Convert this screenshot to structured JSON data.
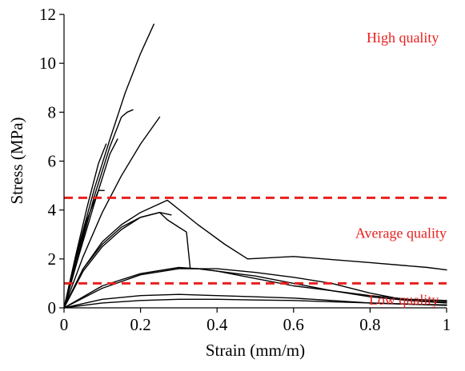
{
  "chart_data": {
    "type": "line",
    "xlabel": "Strain (mm/m)",
    "ylabel": "Stress (MPa)",
    "xlim": [
      0,
      1
    ],
    "ylim": [
      0,
      12
    ],
    "xticks": [
      0,
      0.2,
      0.4,
      0.6,
      0.8,
      1
    ],
    "yticks": [
      0,
      2,
      4,
      6,
      8,
      10,
      12
    ],
    "xtick_labels": [
      "0",
      "0.2",
      "0.4",
      "0.6",
      "0.8",
      "1"
    ],
    "ytick_labels": [
      "0",
      "2",
      "4",
      "6",
      "8",
      "10",
      "12"
    ],
    "grid": false,
    "legend": "none",
    "series": [
      {
        "x": [
          0,
          0.04,
          0.08,
          0.12,
          0.16,
          0.2,
          0.235
        ],
        "y": [
          0,
          2.6,
          4.9,
          6.9,
          8.8,
          10.4,
          11.6
        ]
      },
      {
        "x": [
          0,
          0.04,
          0.08,
          0.12,
          0.15,
          0.165,
          0.18
        ],
        "y": [
          0,
          2.3,
          4.6,
          6.6,
          7.8,
          8.0,
          8.1
        ]
      },
      {
        "x": [
          0,
          0.04,
          0.08,
          0.12,
          0.14
        ],
        "y": [
          0,
          2.2,
          4.3,
          6.3,
          6.9
        ]
      },
      {
        "x": [
          0,
          0.05,
          0.1,
          0.15,
          0.2,
          0.25
        ],
        "y": [
          0,
          2.1,
          3.9,
          5.4,
          6.7,
          7.8
        ]
      },
      {
        "x": [
          0,
          0.03,
          0.06,
          0.09,
          0.11
        ],
        "y": [
          0,
          2.1,
          4.1,
          5.9,
          6.7
        ]
      },
      {
        "x": [
          0,
          0.03,
          0.06,
          0.09,
          0.105
        ],
        "y": [
          0,
          1.9,
          3.6,
          4.8,
          4.8
        ]
      },
      {
        "x": [
          0,
          0.05,
          0.1,
          0.15,
          0.2,
          0.27,
          0.35,
          0.42,
          0.48,
          0.6,
          0.8,
          0.95,
          1
        ],
        "y": [
          0,
          1.6,
          2.7,
          3.4,
          3.9,
          4.4,
          3.4,
          2.6,
          2.0,
          2.1,
          1.85,
          1.65,
          1.55
        ]
      },
      {
        "x": [
          0,
          0.05,
          0.1,
          0.15,
          0.2,
          0.25,
          0.27,
          0.3,
          0.32,
          0.33,
          0.35,
          0.4,
          0.5,
          0.6,
          0.7,
          0.8,
          0.9,
          1
        ],
        "y": [
          0,
          1.6,
          2.6,
          3.3,
          3.7,
          3.9,
          3.6,
          3.3,
          3.1,
          1.6,
          1.6,
          1.5,
          1.2,
          0.9,
          0.7,
          0.5,
          0.35,
          0.3
        ]
      },
      {
        "x": [
          0,
          0.05,
          0.1,
          0.15,
          0.2,
          0.25,
          0.28
        ],
        "y": [
          0,
          1.5,
          2.5,
          3.2,
          3.7,
          3.9,
          3.8
        ]
      },
      {
        "x": [
          0,
          0.1,
          0.2,
          0.3,
          0.35,
          0.4,
          0.5,
          0.6,
          0.7,
          0.8,
          0.9,
          1
        ],
        "y": [
          0,
          0.9,
          1.4,
          1.65,
          1.6,
          1.5,
          1.3,
          1.0,
          0.7,
          0.45,
          0.3,
          0.25
        ]
      },
      {
        "x": [
          0,
          0.1,
          0.2,
          0.3,
          0.4,
          0.5,
          0.6,
          0.7,
          0.8,
          0.9,
          1
        ],
        "y": [
          0,
          0.8,
          1.35,
          1.6,
          1.6,
          1.45,
          1.25,
          1.0,
          0.6,
          0.3,
          0.2
        ]
      },
      {
        "x": [
          0,
          0.1,
          0.2,
          0.3,
          0.4,
          0.5,
          0.6,
          0.7,
          0.8,
          0.9,
          1
        ],
        "y": [
          0,
          0.35,
          0.5,
          0.55,
          0.5,
          0.45,
          0.4,
          0.3,
          0.2,
          0.15,
          0.12
        ]
      },
      {
        "x": [
          0,
          0.1,
          0.2,
          0.3,
          0.4,
          0.5,
          0.6,
          0.7,
          0.8,
          0.9,
          1
        ],
        "y": [
          0,
          0.2,
          0.3,
          0.35,
          0.35,
          0.32,
          0.3,
          0.25,
          0.2,
          0.15,
          0.1
        ]
      }
    ],
    "thresholds": [
      {
        "y": 4.5,
        "color": "#e8201f"
      },
      {
        "y": 1.0,
        "color": "#e8201f"
      }
    ],
    "annotations": [
      {
        "text": "High quality",
        "x": 0.98,
        "y": 11.05,
        "color": "#e8201f"
      },
      {
        "text": "Average quality",
        "x": 1.0,
        "y": 3.05,
        "color": "#e8201f"
      },
      {
        "text": "Low quality",
        "x": 0.98,
        "y": 0.33,
        "color": "#e8201f"
      }
    ]
  }
}
